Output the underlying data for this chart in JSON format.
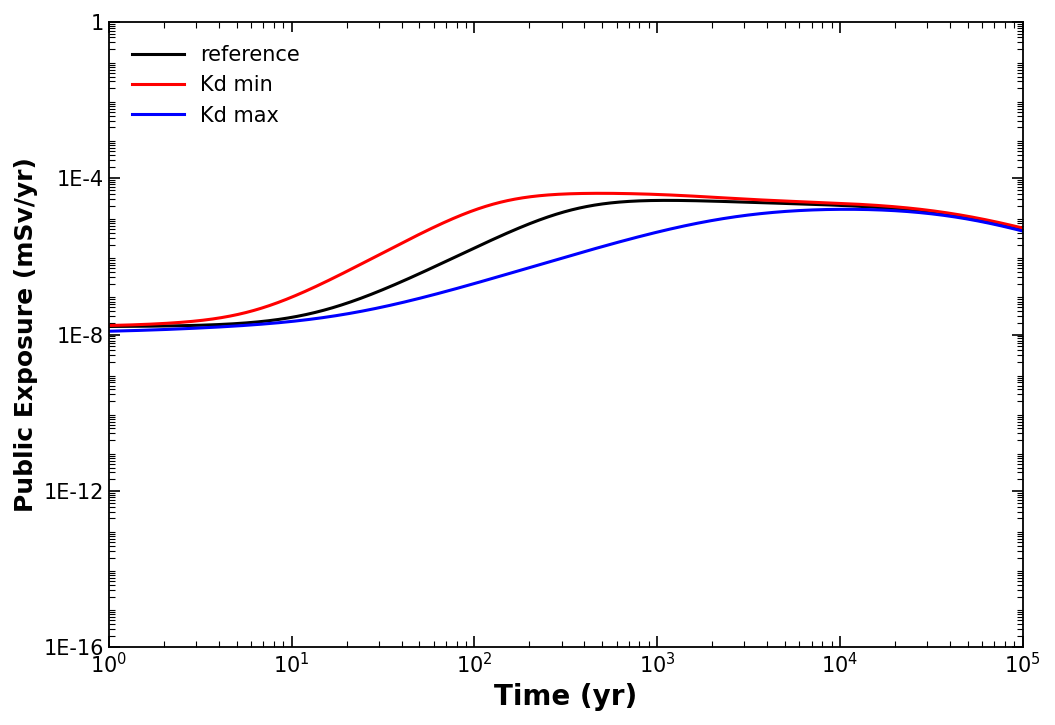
{
  "title": "",
  "xlabel": "Time (yr)",
  "ylabel": "Public Exposure (mSv/yr)",
  "xlim": [
    1,
    100000
  ],
  "ylim": [
    1e-16,
    1
  ],
  "legend_labels": [
    "reference",
    "Kd min",
    "Kd max"
  ],
  "legend_colors": [
    "black",
    "red",
    "blue"
  ],
  "line_width": 2.2,
  "xlabel_fontsize": 20,
  "ylabel_fontsize": 18,
  "tick_fontsize": 15,
  "legend_fontsize": 15,
  "background_color": "#ffffff",
  "ytick_labels": [
    "1E-16",
    "1E-12",
    "1E-8",
    "1E-4",
    "1"
  ],
  "ytick_values": [
    1e-16,
    1e-12,
    1e-08,
    0.0001,
    1
  ]
}
